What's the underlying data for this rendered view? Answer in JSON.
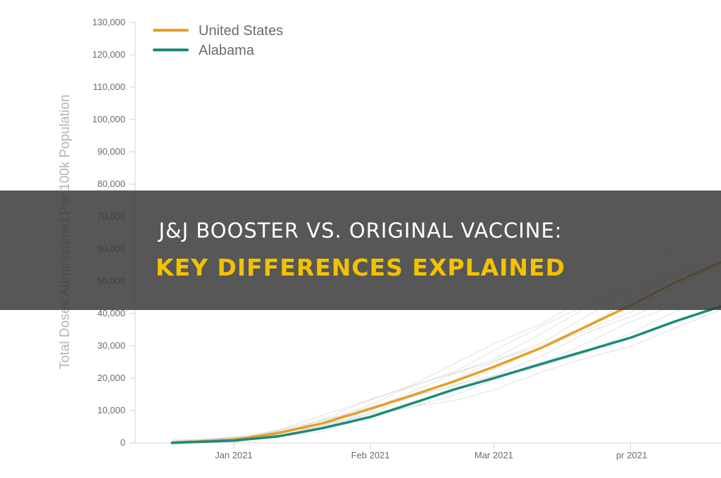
{
  "chart_data": {
    "type": "line",
    "title": "",
    "xlabel": "",
    "ylabel": "Total Doses Administered Per 100k Population",
    "ylim": [
      0,
      130000
    ],
    "yticks": [
      "0",
      "10,000",
      "20,000",
      "30,000",
      "40,000",
      "50,000",
      "60,000",
      "70,000",
      "80,000",
      "90,000",
      "100,000",
      "110,000",
      "120,000",
      "130,000"
    ],
    "xticks": [
      "Jan 2021",
      "Feb 2021",
      "Mar 2021",
      " pr 2021"
    ],
    "xlim_days": [
      -18,
      127
    ],
    "legend_position": "top-left",
    "series": [
      {
        "name": "United States",
        "color": "#e69f22",
        "x_days": [
          -14,
          0,
          10,
          20,
          31,
          40,
          50,
          59,
          70,
          80,
          90,
          100,
          110,
          120,
          127
        ],
        "values": [
          0,
          1000,
          3000,
          6000,
          10500,
          14500,
          19000,
          23500,
          29500,
          36000,
          42500,
          49500,
          55500,
          61500,
          65000
        ]
      },
      {
        "name": "Alabama",
        "color": "#1b8a7a",
        "x_days": [
          -14,
          0,
          10,
          20,
          31,
          40,
          50,
          59,
          70,
          80,
          90,
          100,
          110,
          120,
          127
        ],
        "values": [
          0,
          700,
          2000,
          4500,
          8000,
          12000,
          16500,
          20000,
          24500,
          28500,
          32500,
          37500,
          42000,
          45500,
          47500
        ]
      }
    ]
  },
  "banner": {
    "line1": "J&J BOOSTER VS. ORIGINAL VACCINE:",
    "line2": "KEY DIFFERENCES EXPLAINED"
  }
}
